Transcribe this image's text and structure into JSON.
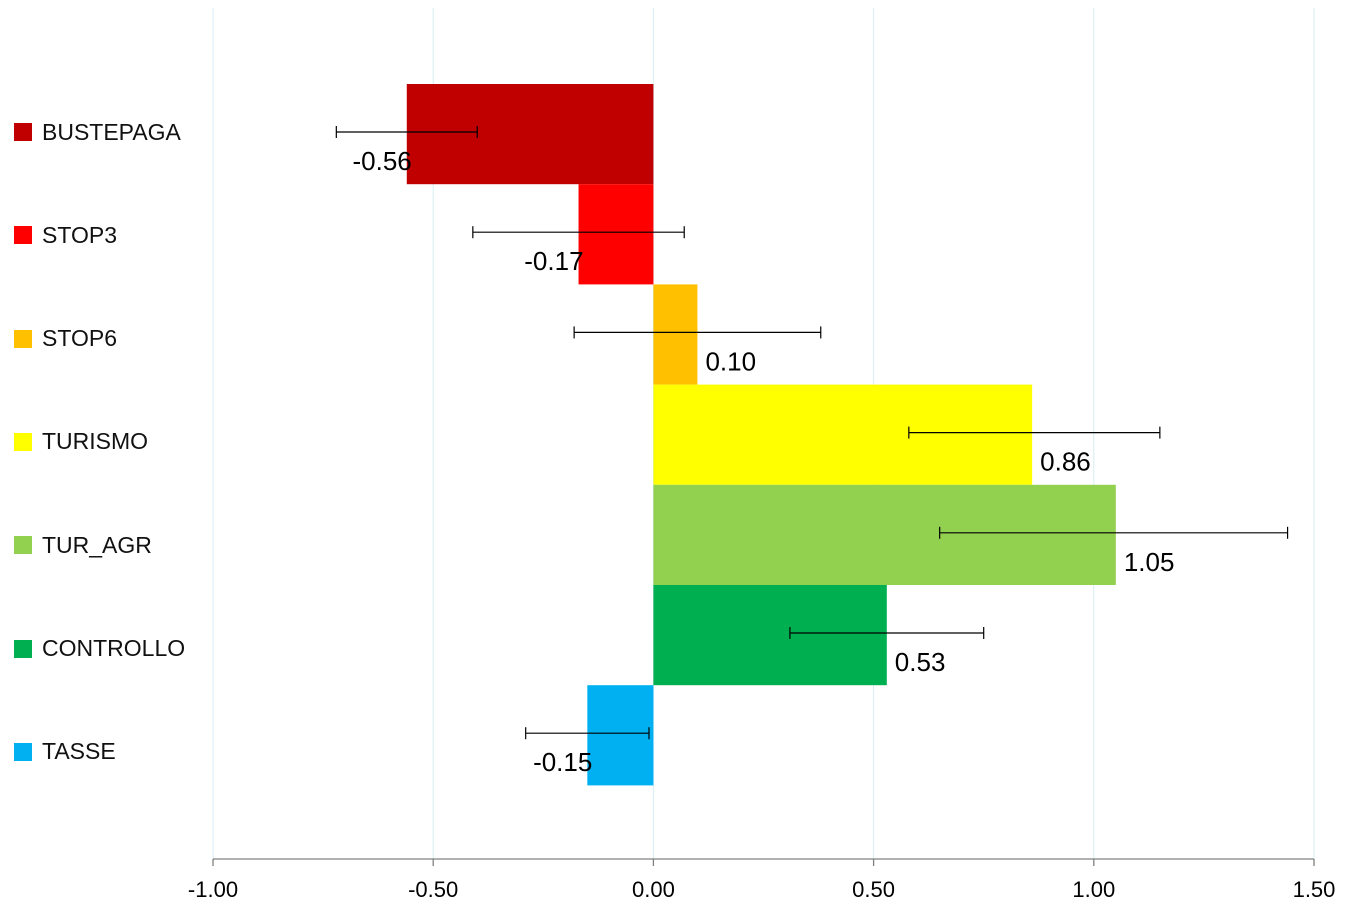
{
  "chart_data": {
    "type": "bar",
    "orientation": "horizontal",
    "title": "",
    "xlabel": "",
    "ylabel": "",
    "xlim": [
      -1.0,
      1.5
    ],
    "x_ticks": [
      -1.0,
      -0.5,
      0.0,
      0.5,
      1.0,
      1.5
    ],
    "x_tick_labels": [
      "-1.00",
      "-0.50",
      "0.00",
      "0.50",
      "1.00",
      "1.50"
    ],
    "grid": "vertical",
    "legend_placement": "left",
    "categories": [
      "BUSTEPAGA",
      "STOP3",
      "STOP6",
      "TURISMO",
      "TUR_AGR",
      "CONTROLLO",
      "TASSE"
    ],
    "values": [
      -0.56,
      -0.17,
      0.1,
      0.86,
      1.05,
      0.53,
      -0.15
    ],
    "data_labels": [
      "-0.56",
      "-0.17",
      "0.10",
      "0.86",
      "1.05",
      "0.53",
      "-0.15"
    ],
    "error_bars": [
      [
        -0.72,
        -0.4
      ],
      [
        -0.41,
        0.07
      ],
      [
        -0.18,
        0.38
      ],
      [
        0.58,
        1.15
      ],
      [
        0.65,
        1.44
      ],
      [
        0.31,
        0.75
      ],
      [
        -0.29,
        -0.01
      ]
    ],
    "colors": [
      "#c00000",
      "#ff0000",
      "#ffc000",
      "#ffff00",
      "#92d050",
      "#00b050",
      "#00b0f0"
    ]
  }
}
